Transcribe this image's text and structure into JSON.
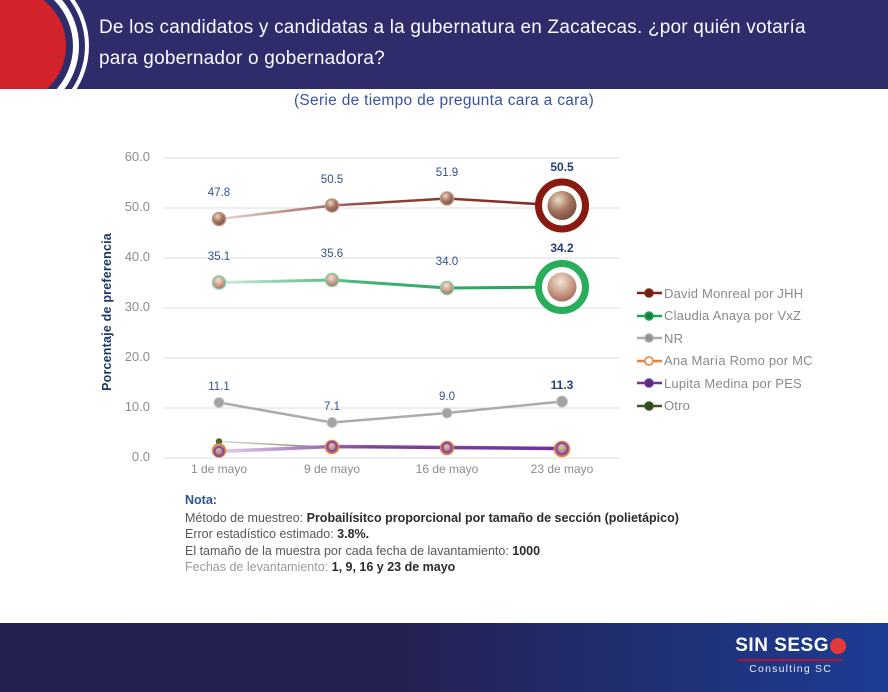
{
  "header": {
    "title": "De los candidatos y candidatas a la gubernatura en Zacatecas. ¿por quién votaría para gobernador o gobernadora?",
    "subtitle": "(Serie de tiempo de pregunta cara a cara)"
  },
  "colors": {
    "banner": "#2E2C6A",
    "logo_red": "#D2232A",
    "subtitle_blue": "#39549F",
    "gridline": "#DCDCDC",
    "data_label": "#33508F",
    "footer_left": "#232050",
    "footer_right": "#1C3D94"
  },
  "chart_data": {
    "type": "line",
    "title": "(Serie de tiempo de pregunta cara a cara)",
    "xlabel": "",
    "ylabel": "Porcentaje de preferencia",
    "categories": [
      "1 de mayo",
      "9 de mayo",
      "16 de mayo",
      "23 de mayo"
    ],
    "ylim": [
      0,
      60
    ],
    "ytick_labels": [
      "0.0",
      "10.0",
      "20.0",
      "30.0",
      "40.0",
      "50.0",
      "60.0"
    ],
    "grid": true,
    "legend_position": "right",
    "series": [
      {
        "name": "David Monreal por JHH",
        "values": [
          47.8,
          50.5,
          51.9,
          50.5
        ],
        "labels": [
          "47.8",
          "50.5",
          "51.9",
          "50.5"
        ],
        "color": "#7E2416",
        "color_light": "#EADAD6",
        "width": 2.5,
        "marker": "photo-a",
        "marker_stroke": "#C09287",
        "big_last": true,
        "ring_color": "#8A1A0F",
        "legend_dot": "#6E2218"
      },
      {
        "name": "Claudia Anaya por VxZ",
        "values": [
          35.1,
          35.6,
          34.0,
          34.2
        ],
        "labels": [
          "35.1",
          "35.6",
          "34.0",
          "34.2"
        ],
        "color": "#1FA356",
        "color_light": "#D4EBDD",
        "width": 3,
        "marker": "photo-b",
        "marker_stroke": "#86CBA0",
        "big_last": true,
        "ring_color": "#28AD5B",
        "legend_dot": "#1E7A42"
      },
      {
        "name": "NR",
        "values": [
          11.1,
          7.1,
          9.0,
          11.3
        ],
        "labels": [
          "11.1",
          "7.1",
          "9.0",
          "11.3"
        ],
        "color": "#ABABAB",
        "color_light": "#C4C4C4",
        "width": 2.5,
        "marker": "dot",
        "legend_dot": "#909090"
      },
      {
        "name": "Ana María Romo por MC",
        "values": [
          1.5,
          2.2,
          2.0,
          1.8
        ],
        "color": "#E8833A",
        "color_light": "#F2DFC9",
        "width": 2,
        "marker": "ring-orange",
        "legend_dot": "#FFFFFF"
      },
      {
        "name": "Lupita Medina por PES",
        "values": [
          1.3,
          2.3,
          2.1,
          1.9
        ],
        "color": "#7030A0",
        "color_light": "#E3D3EE",
        "width": 3.5,
        "marker": "ring-purple",
        "legend_dot": "#5B2C6F"
      },
      {
        "name": "Otro",
        "values": [
          3.3,
          2.1,
          2.0,
          1.7
        ],
        "color": "#3E5426",
        "color_light": "#D8E0CC",
        "width": 1.5,
        "marker": "dot-dark",
        "legend_dot": "#2F4A20"
      }
    ]
  },
  "note": {
    "title": "Nota:",
    "lines": [
      {
        "prefix": "Método de muestreo: ",
        "bold": "Probailísitco proporcional por tamaño de sección (polietápico)",
        "suffix": ""
      },
      {
        "prefix": "Error estadístico estimado: ",
        "bold": "3.8%",
        "suffix": "."
      },
      {
        "prefix": "El tamaño de la muestra por cada fecha de lavantamiento: ",
        "bold": "1000",
        "suffix": ""
      },
      {
        "prefix": "Fechas de levantamiento: ",
        "bold": "1, 9, 16 y 23 de mayo",
        "suffix": "",
        "muted": true
      }
    ]
  },
  "footer": {
    "brand": "SIN SESGO",
    "brand_sub": "Consulting SC"
  }
}
